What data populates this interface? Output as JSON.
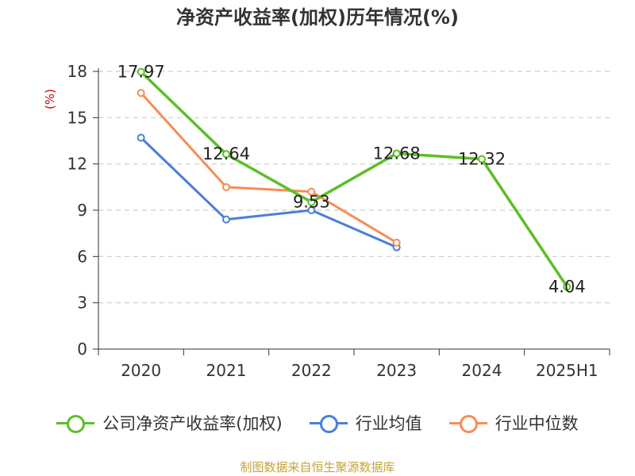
{
  "title": "净资产收益率(加权)历年情况(%)",
  "source_text": "制图数据来自恒生聚源数据库",
  "colors": {
    "company": "#5cbf26",
    "industry_avg": "#4a7fd6",
    "industry_median": "#f78c57",
    "ylabel": "#cc0000",
    "source": "#c4a43b"
  },
  "chart_data": {
    "type": "line",
    "categories": [
      "2020",
      "2021",
      "2022",
      "2023",
      "2024",
      "2025H1"
    ],
    "ylabel": "(%)",
    "ylim": [
      0,
      18
    ],
    "yticks": [
      0,
      3,
      6,
      9,
      12,
      15,
      18
    ],
    "grid": true,
    "legend_position": "bottom",
    "series": [
      {
        "name": "公司净资产收益率(加权)",
        "values": [
          17.97,
          12.64,
          9.53,
          12.68,
          12.32,
          4.04
        ],
        "labels": [
          "17.97",
          "12.64",
          "9.53",
          "12.68",
          "12.32",
          "4.04"
        ]
      },
      {
        "name": "行业均值",
        "values": [
          13.7,
          8.4,
          9.0,
          6.6,
          null,
          null
        ]
      },
      {
        "name": "行业中位数",
        "values": [
          16.6,
          10.5,
          10.2,
          6.9,
          null,
          null
        ]
      }
    ]
  }
}
